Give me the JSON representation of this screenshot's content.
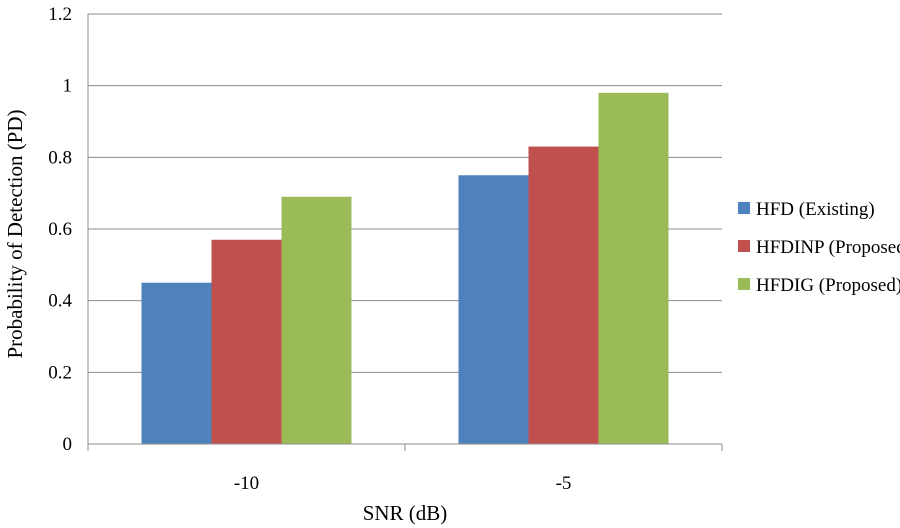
{
  "chart_data": {
    "type": "bar",
    "categories": [
      "-10",
      "-5"
    ],
    "series": [
      {
        "name": "HFD (Existing)",
        "values": [
          0.45,
          0.75
        ],
        "color": "#4F81BD"
      },
      {
        "name": "HFDINP (Proposed)",
        "values": [
          0.57,
          0.83
        ],
        "color": "#C0504D"
      },
      {
        "name": "HFDIG (Proposed)",
        "values": [
          0.69,
          0.98
        ],
        "color": "#9BBB59"
      }
    ],
    "title": "",
    "xlabel": "SNR (dB)",
    "ylabel": "Probability of Detection (PD)",
    "ylim": [
      0,
      1.2
    ],
    "yticks": [
      "0",
      "0.2",
      "0.4",
      "0.6",
      "0.8",
      "1",
      "1.2"
    ],
    "grid": true,
    "legend_position": "right",
    "grid_color": "#8c8c8c",
    "axis_color": "#8c8c8c"
  }
}
